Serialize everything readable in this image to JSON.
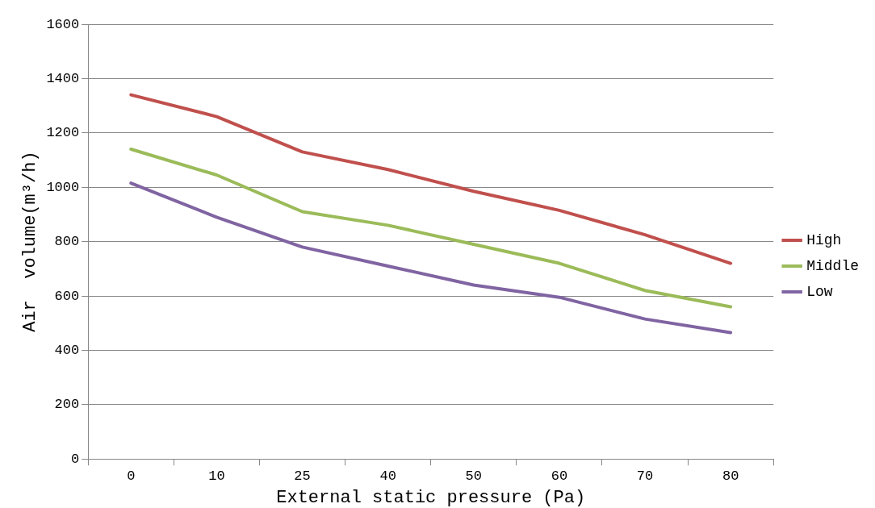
{
  "chart_data": {
    "type": "line",
    "xlabel": "External static pressure (Pa)",
    "ylabel": "Air  volume(m³/h)",
    "categories": [
      "0",
      "10",
      "25",
      "40",
      "50",
      "60",
      "70",
      "80"
    ],
    "series": [
      {
        "name": "High",
        "color": "#c0504d",
        "values": [
          1340,
          1260,
          1130,
          1065,
          985,
          915,
          825,
          720
        ]
      },
      {
        "name": "Middle",
        "color": "#9bbb59",
        "values": [
          1140,
          1045,
          910,
          860,
          790,
          720,
          620,
          560
        ]
      },
      {
        "name": "Low",
        "color": "#8064a2",
        "values": [
          1015,
          890,
          780,
          710,
          640,
          595,
          515,
          465
        ]
      }
    ],
    "ylim": [
      0,
      1600
    ],
    "yticks": [
      0,
      200,
      400,
      600,
      800,
      1000,
      1200,
      1400,
      1600
    ],
    "grid": "y",
    "legend": "right",
    "marker": "none",
    "line_style": "solid"
  }
}
